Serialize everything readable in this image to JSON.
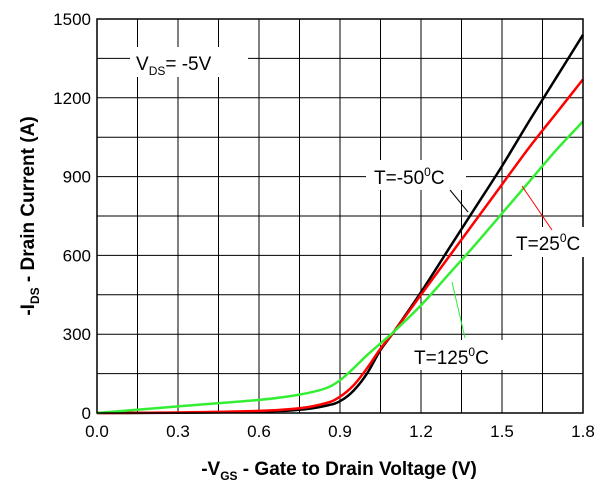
{
  "chart_data": {
    "type": "line",
    "title": "",
    "xlabel": "-V_GS - Gate to Drain Voltage (V)",
    "xlabel_parts": {
      "prefix": "-V",
      "sub": "GS",
      "suffix": " - Gate to Drain Voltage (V)"
    },
    "ylabel": "-I_DS - Drain Current (A)",
    "ylabel_parts": {
      "prefix": "-I",
      "sub": "DS",
      "suffix": " - Drain Current (A)"
    },
    "xlim": [
      0,
      1.8
    ],
    "ylim": [
      0,
      1500
    ],
    "xticks": [
      "0.0",
      "0.3",
      "0.6",
      "0.9",
      "1.2",
      "1.5",
      "1.8"
    ],
    "yticks": [
      "0",
      "300",
      "600",
      "900",
      "1200",
      "1500"
    ],
    "x_minor_step": 0.15,
    "y_minor_step": 150,
    "grid": true,
    "condition": {
      "prefix": "V",
      "sub": "DS",
      "suffix": "= -5V"
    },
    "series": [
      {
        "name": "T=-50°C",
        "label_parts": {
          "pre": "T=-50",
          "sup": "0",
          "post": "C"
        },
        "color": "#000000",
        "x": [
          0,
          0.3,
          0.6,
          0.75,
          0.85,
          0.9,
          0.95,
          1.0,
          1.05,
          1.1,
          1.2,
          1.3,
          1.4,
          1.5,
          1.6,
          1.7,
          1.8
        ],
        "y": [
          0,
          1,
          5,
          12,
          28,
          45,
          85,
          150,
          240,
          310,
          460,
          620,
          780,
          940,
          1110,
          1275,
          1440
        ]
      },
      {
        "name": "T=25°C",
        "label_parts": {
          "pre": "T=25",
          "sup": "0",
          "post": "C"
        },
        "color": "#ff0000",
        "x": [
          0,
          0.3,
          0.6,
          0.75,
          0.85,
          0.9,
          0.95,
          1.0,
          1.05,
          1.1,
          1.2,
          1.3,
          1.4,
          1.5,
          1.6,
          1.7,
          1.8
        ],
        "y": [
          0,
          2,
          8,
          18,
          38,
          62,
          105,
          170,
          245,
          310,
          450,
          590,
          730,
          870,
          1010,
          1140,
          1270
        ]
      },
      {
        "name": "T=125°C",
        "label_parts": {
          "pre": "T=125",
          "sup": "0",
          "post": "C"
        },
        "color": "#33ee33",
        "x": [
          0,
          0.3,
          0.6,
          0.75,
          0.85,
          0.9,
          0.95,
          1.0,
          1.05,
          1.1,
          1.2,
          1.3,
          1.4,
          1.5,
          1.6,
          1.7,
          1.8
        ],
        "y": [
          0,
          25,
          50,
          70,
          95,
          125,
          170,
          220,
          265,
          310,
          410,
          525,
          640,
          760,
          880,
          1000,
          1110
        ]
      }
    ]
  }
}
